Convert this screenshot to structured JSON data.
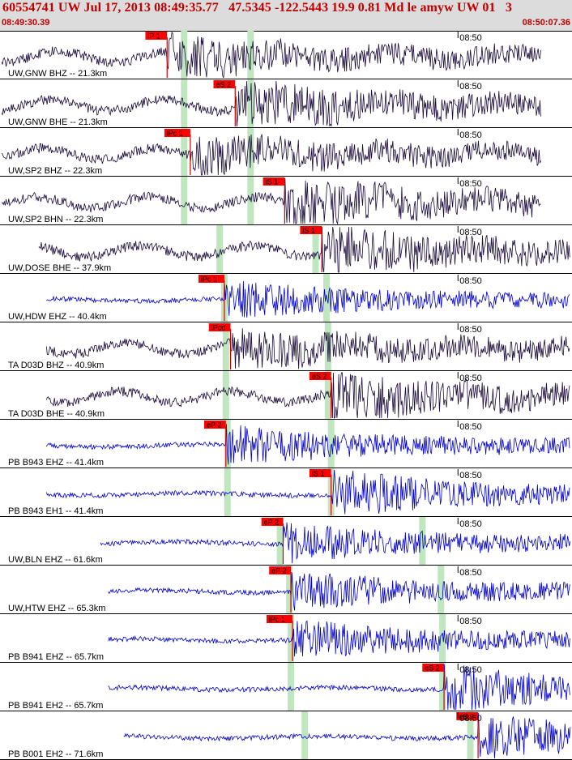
{
  "header": {
    "event_line": "60554741 UW Jul 17, 2013 08:49:35.77   47.5345 -122.5443 19.9 0.81 Md le amyw UW 01   3",
    "start_time": "08:49:30.39",
    "end_time": "08:50:07.36"
  },
  "colors": {
    "header_bg": "#dcdcdc",
    "header_text": "#c00000",
    "trace_dark": "#1a0a3a",
    "trace_blue": "#0000cc",
    "pick_flag": "#ff0000",
    "pick_line": "#cc0000",
    "predicted_band": "#bfe6bf",
    "separator": "#000000"
  },
  "chart_data": {
    "type": "seismogram",
    "time_range": [
      "08:49:30.39",
      "08:50:07.36"
    ],
    "tick_label": "08:50",
    "channels": [
      {
        "label": "UW,GNW BHZ -- 21.3km",
        "color": "dark",
        "pick": "iP 1",
        "pick_time": 10.8,
        "predicted": [
          11.9,
          16.2
        ],
        "span": [
          0,
          35
        ]
      },
      {
        "label": "UW,GNW BHE -- 21.3km",
        "color": "dark",
        "pick": "eS 2",
        "pick_time": 15.2,
        "predicted": [
          11.9,
          16.2
        ],
        "span": [
          0,
          35
        ]
      },
      {
        "label": "UW,SP2 BHZ -- 22.3km",
        "color": "dark",
        "pick": "iPc 1",
        "pick_time": 12.3,
        "predicted": [
          11.9,
          16.2
        ],
        "span": [
          0,
          35
        ]
      },
      {
        "label": "UW,SP2 BHN -- 22.3km",
        "color": "dark",
        "pick": "iS 1",
        "pick_time": 18.4,
        "predicted": [
          11.9,
          16.2
        ],
        "span": [
          0,
          35
        ]
      },
      {
        "label": "UW,DOSE BHE -- 37.9km",
        "color": "dark",
        "pick": "iS 1",
        "pick_time": 20.8,
        "predicted": [
          14.2,
          20.4
        ],
        "span": [
          2.5,
          37.5
        ]
      },
      {
        "label": "UW,HDW EHZ -- 40.4km",
        "color": "blue",
        "pick": "iPc 1",
        "pick_time": 14.5,
        "predicted": [
          14.5,
          21.1
        ],
        "span": [
          3,
          38
        ]
      },
      {
        "label": "TA D03D BHZ -- 40.9km",
        "color": "dark",
        "pick": "iPcd",
        "pick_time": 14.9,
        "predicted": [
          14.6,
          21.2
        ],
        "span": [
          3,
          38
        ]
      },
      {
        "label": "TA D03D BHE -- 40.9km",
        "color": "dark",
        "pick": "eS 2",
        "pick_time": 21.4,
        "predicted": [
          14.6,
          21.2
        ],
        "span": [
          3,
          38
        ]
      },
      {
        "label": "PB B943 EHZ -- 41.4km",
        "color": "blue",
        "pick": "eP 2",
        "pick_time": 14.6,
        "predicted": [
          14.7,
          21.4
        ],
        "span": [
          3,
          38
        ]
      },
      {
        "label": "PB B943 EH1 -- 41.4km",
        "color": "blue",
        "pick": "iS 1",
        "pick_time": 21.4,
        "predicted": [
          14.7,
          21.4
        ],
        "span": [
          3,
          38
        ]
      },
      {
        "label": "UW,BLN EHZ -- 61.6km",
        "color": "blue",
        "pick": "eP 2",
        "pick_time": 18.3,
        "predicted": [
          18.1,
          27.3
        ],
        "span": [
          6.5,
          42
        ]
      },
      {
        "label": "UW,HTW EHZ -- 65.3km",
        "color": "blue",
        "pick": "eP 2",
        "pick_time": 18.8,
        "predicted": [
          18.7,
          28.5
        ],
        "span": [
          7,
          42
        ]
      },
      {
        "label": "PB B941 EHZ -- 65.7km",
        "color": "blue",
        "pick": "iPc 1",
        "pick_time": 18.9,
        "predicted": [
          18.8,
          28.6
        ],
        "span": [
          7,
          42
        ]
      },
      {
        "label": "PB B941 EH2 -- 65.7km",
        "color": "blue",
        "pick": "eS 2",
        "pick_time": 28.7,
        "predicted": [
          18.8,
          28.6
        ],
        "span": [
          7,
          42
        ]
      },
      {
        "label": "PB B001 EH2 -- 71.6km",
        "color": "blue",
        "pick": "eS 2",
        "pick_time": 30.9,
        "predicted": [
          19.7,
          30.4
        ],
        "span": [
          8,
          43
        ]
      }
    ]
  }
}
